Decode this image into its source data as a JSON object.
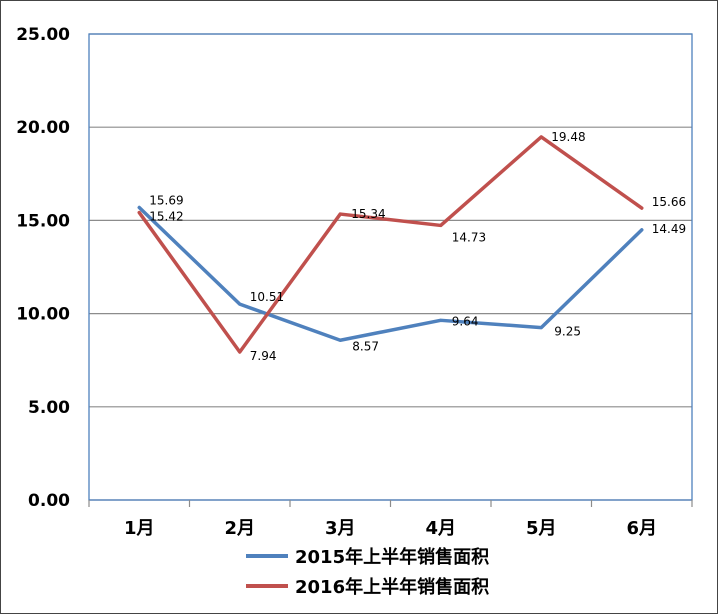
{
  "chart_data": {
    "type": "line",
    "categories": [
      "1月",
      "2月",
      "3月",
      "4月",
      "5月",
      "6月"
    ],
    "series": [
      {
        "name": "2015年上半年销售面积",
        "color": "#4f81bd",
        "values": [
          15.69,
          10.51,
          8.57,
          9.64,
          9.25,
          14.49
        ],
        "labels": [
          "15.69",
          "10.51",
          "8.57",
          "9.64",
          "9.25",
          "14.49"
        ]
      },
      {
        "name": "2016年上半年销售面积",
        "color": "#c0504d",
        "values": [
          15.42,
          7.94,
          15.34,
          14.73,
          19.48,
          15.66
        ],
        "labels": [
          "15.42",
          "7.94",
          "15.34",
          "14.73",
          "19.48",
          "15.66"
        ]
      }
    ],
    "yticks": [
      "0.00",
      "5.00",
      "10.00",
      "15.00",
      "20.00",
      "25.00"
    ],
    "ylim": [
      0,
      25
    ],
    "grid": true,
    "legend_position": "bottom",
    "plot_border_color": "#4f81bd"
  }
}
